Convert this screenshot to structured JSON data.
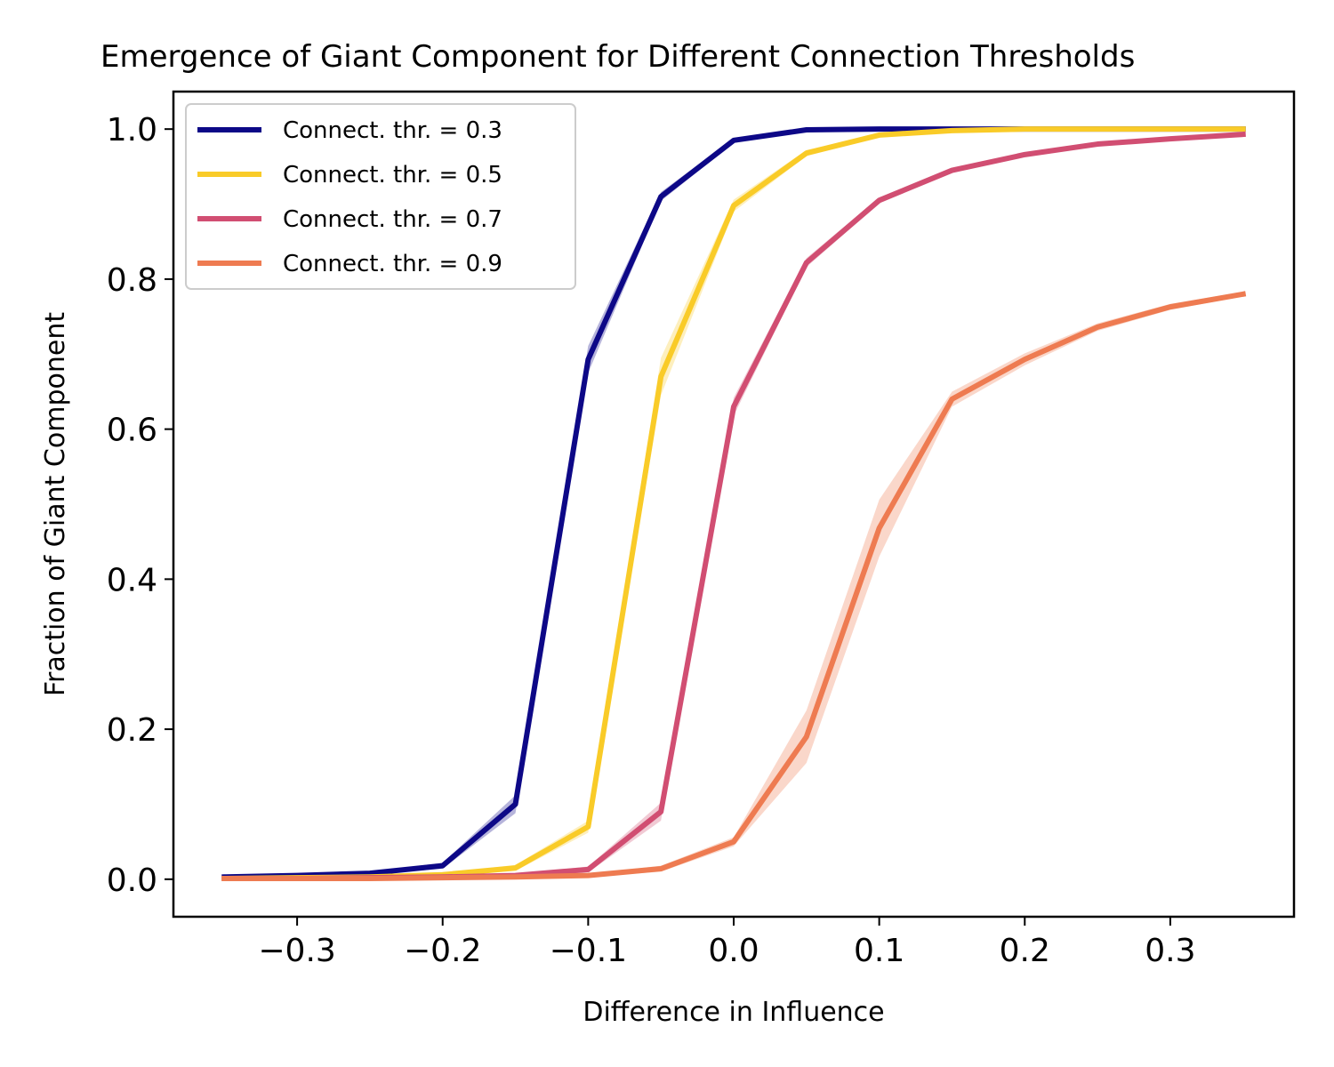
{
  "chart_data": {
    "type": "line",
    "title": "Emergence of Giant Component for Different Connection Thresholds",
    "xlabel": "Difference in Influence",
    "ylabel": "Fraction of Giant Component",
    "xlim": [
      -0.385,
      0.385
    ],
    "ylim": [
      -0.05,
      1.05
    ],
    "xticks": [
      -0.3,
      -0.2,
      -0.1,
      0.0,
      0.1,
      0.2,
      0.3
    ],
    "xtick_labels": [
      "−0.3",
      "−0.2",
      "−0.1",
      "0.0",
      "0.1",
      "0.2",
      "0.3"
    ],
    "yticks": [
      0.0,
      0.2,
      0.4,
      0.6,
      0.8,
      1.0
    ],
    "ytick_labels": [
      "0.0",
      "0.2",
      "0.4",
      "0.6",
      "0.8",
      "1.0"
    ],
    "grid": false,
    "legend_position": "top-left",
    "x": [
      -0.35,
      -0.3,
      -0.25,
      -0.2,
      -0.15,
      -0.1,
      -0.05,
      0.0,
      0.05,
      0.1,
      0.15,
      0.2,
      0.25,
      0.3,
      0.35
    ],
    "series": [
      {
        "name": "Connect. thr. = 0.3",
        "color": "#0d0887",
        "values": [
          0.003,
          0.005,
          0.008,
          0.018,
          0.1,
          0.693,
          0.91,
          0.985,
          0.999,
          1.0,
          1.0,
          1.0,
          1.0,
          1.0,
          1.0
        ],
        "band": [
          0.002,
          0.002,
          0.002,
          0.004,
          0.012,
          0.018,
          0.006,
          0.003,
          0.001,
          0,
          0,
          0,
          0,
          0,
          0
        ]
      },
      {
        "name": "Connect. thr. = 0.5",
        "color": "#f9cb28",
        "values": [
          0.001,
          0.002,
          0.003,
          0.006,
          0.015,
          0.07,
          0.67,
          0.898,
          0.968,
          0.992,
          0.998,
          1.0,
          1.0,
          1.0,
          1.0
        ],
        "band": [
          0.001,
          0.001,
          0.001,
          0.002,
          0.004,
          0.008,
          0.025,
          0.008,
          0.004,
          0.002,
          0.001,
          0,
          0,
          0,
          0
        ]
      },
      {
        "name": "Connect. thr. = 0.7",
        "color": "#d14e72",
        "values": [
          0.001,
          0.001,
          0.002,
          0.003,
          0.005,
          0.013,
          0.09,
          0.63,
          0.822,
          0.905,
          0.945,
          0.966,
          0.98,
          0.987,
          0.993
        ],
        "band": [
          0.001,
          0.001,
          0.001,
          0.001,
          0.002,
          0.004,
          0.012,
          0.012,
          0.006,
          0.004,
          0.003,
          0.002,
          0.002,
          0.002,
          0.002
        ]
      },
      {
        "name": "Connect. thr. = 0.9",
        "color": "#ee7b51",
        "values": [
          0.001,
          0.001,
          0.001,
          0.002,
          0.003,
          0.005,
          0.014,
          0.05,
          0.19,
          0.468,
          0.64,
          0.693,
          0.736,
          0.763,
          0.78
        ],
        "band": [
          0.001,
          0.001,
          0.001,
          0.001,
          0.001,
          0.002,
          0.004,
          0.006,
          0.035,
          0.038,
          0.01,
          0.008,
          0.005,
          0.004,
          0.003
        ]
      }
    ]
  }
}
